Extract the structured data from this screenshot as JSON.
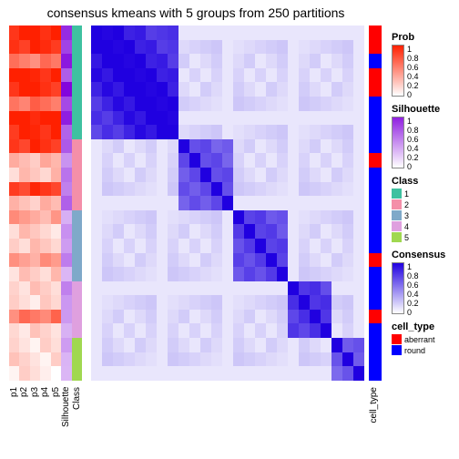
{
  "title": "consensus kmeans with 5 groups from 250 partitions",
  "annotation_columns": [
    "p1",
    "p2",
    "p3",
    "p4",
    "p5",
    "Silhouette",
    "Class"
  ],
  "right_annotation_label": "cell_type",
  "blocks": [
    0.3,
    0.18,
    0.18,
    0.15,
    0.19
  ],
  "class_colors": [
    "#3fc1a0",
    "#f48fa9",
    "#7fa9c9",
    "#dfa0df",
    "#a0d850"
  ],
  "cell_type_pattern": [
    1,
    1,
    0,
    1,
    1,
    0,
    0,
    0,
    0,
    1,
    0,
    0,
    0,
    0,
    0,
    0,
    1,
    0,
    0,
    0,
    1,
    0,
    0,
    0,
    0
  ],
  "cell_type_colors": {
    "aberrant": "#ff0000",
    "round": "#0000ff"
  },
  "prob_palette": {
    "low": "#ffffff",
    "high": "#ff2000"
  },
  "sil_palette": {
    "low": "#ffffff",
    "high": "#9020e0"
  },
  "cons_palette": {
    "low": "#ffffff",
    "high": "#2000e0"
  },
  "prob_intensity": [
    1.0,
    0.95,
    0.6,
    0.3,
    0.25,
    0.9,
    0.2,
    0.4,
    0.2,
    0.2,
    0.15,
    0.6,
    0.1,
    0.15,
    0.15
  ],
  "sil_intensity": [
    0.95,
    0.7,
    0.6,
    0.4,
    0.5,
    0.3,
    0.4,
    0.35,
    0.3,
    0.25
  ],
  "cons_blocks": [
    0.95,
    0.65,
    0.7,
    0.75,
    0.6
  ],
  "cons_off": 0.1,
  "legends": {
    "prob": {
      "title": "Prob",
      "ticks": [
        "1",
        "0.8",
        "0.6",
        "0.4",
        "0.2",
        "0"
      ]
    },
    "sil": {
      "title": "Silhouette",
      "ticks": [
        "1",
        "0.8",
        "0.6",
        "0.4",
        "0.2",
        "0"
      ]
    },
    "class": {
      "title": "Class",
      "items": [
        {
          "label": "1",
          "color": "#3fc1a0"
        },
        {
          "label": "2",
          "color": "#f48fa9"
        },
        {
          "label": "3",
          "color": "#7fa9c9"
        },
        {
          "label": "4",
          "color": "#dfa0df"
        },
        {
          "label": "5",
          "color": "#a0d850"
        }
      ]
    },
    "cons": {
      "title": "Consensus",
      "ticks": [
        "1",
        "0.8",
        "0.6",
        "0.4",
        "0.2",
        "0"
      ]
    },
    "cell_type": {
      "title": "cell_type",
      "items": [
        {
          "label": "aberrant",
          "color": "#ff0000"
        },
        {
          "label": "round",
          "color": "#0000ff"
        }
      ]
    }
  }
}
